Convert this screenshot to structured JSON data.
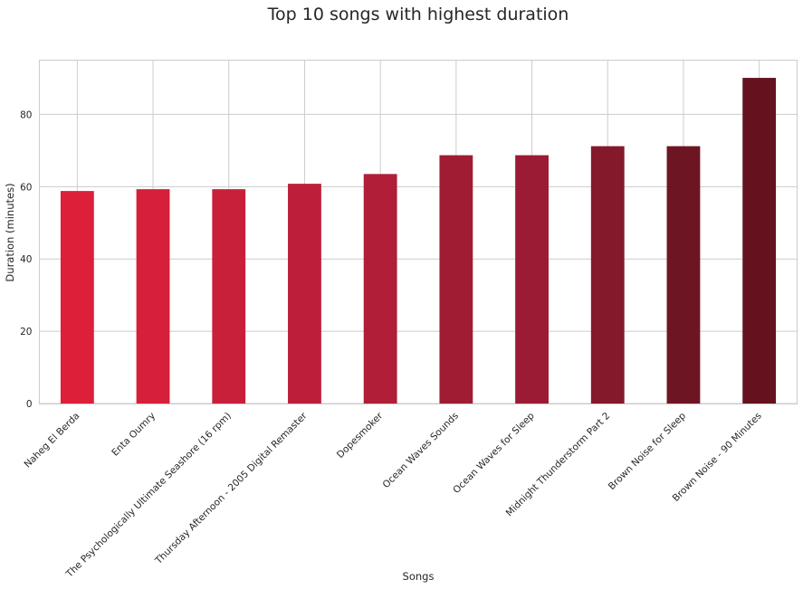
{
  "chart_data": {
    "type": "bar",
    "title": "Top 10 songs with highest duration",
    "xlabel": "Songs",
    "ylabel": "Duration (minutes)",
    "ylim": [
      0,
      95
    ],
    "yticks": [
      0,
      20,
      40,
      60,
      80
    ],
    "grid": true,
    "categories": [
      "Naheg El Berda",
      "Enta Oumry",
      "The Psychologically Ultimate Seashore (16 rpm)",
      "Thursday Afternoon - 2005 Digital Remaster",
      "Dopesmoker",
      "Ocean Waves Sounds",
      "Ocean Waves for Sleep",
      "Midnight Thunderstorm Part 2",
      "Brown Noise for Sleep",
      "Brown Noise - 90 Minutes"
    ],
    "values": [
      58.8,
      59.3,
      59.3,
      60.8,
      63.5,
      68.7,
      68.7,
      71.2,
      71.2,
      90.1
    ],
    "colors": [
      "#dd1f3a",
      "#d61f3b",
      "#c8203a",
      "#bd1f3a",
      "#b01e37",
      "#a01c33",
      "#9a1b33",
      "#84192b",
      "#6e1524",
      "#65121f"
    ]
  }
}
